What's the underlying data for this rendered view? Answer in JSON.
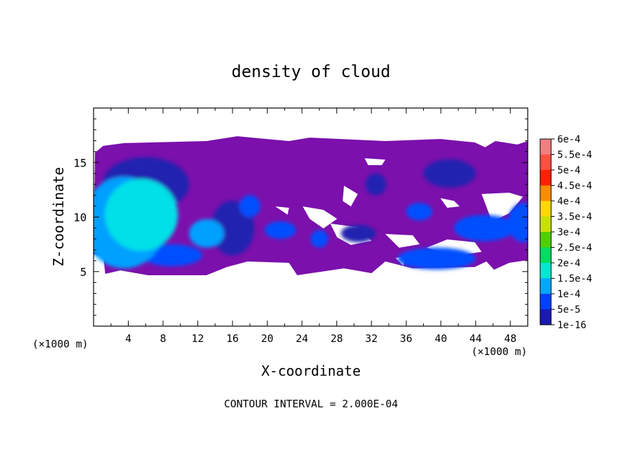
{
  "chart_data": {
    "type": "heatmap",
    "title": "density of cloud",
    "xlabel": "X-coordinate",
    "ylabel": "Z-coordinate",
    "x_unit_left": "(×1000 m)",
    "x_unit_right": "(×1000 m)",
    "xlim": [
      0,
      50
    ],
    "ylim": [
      0,
      20
    ],
    "x_ticks": [
      "4",
      "8",
      "12",
      "16",
      "20",
      "24",
      "28",
      "32",
      "36",
      "40",
      "44",
      "48"
    ],
    "y_ticks": [
      "5",
      "10",
      "15"
    ],
    "footer": "CONTOUR INTERVAL = 2.000E-04",
    "legend": {
      "placement": "right",
      "labels": [
        "6e-4",
        "5.5e-4",
        "5e-4",
        "4.5e-4",
        "4e-4",
        "3.5e-4",
        "3e-4",
        "2.5e-4",
        "2e-4",
        "1.5e-4",
        "1e-4",
        "5e-5",
        "1e-16"
      ],
      "colors": [
        "#f08080",
        "#ff5040",
        "#ff2000",
        "#ff8c00",
        "#ffd700",
        "#c8e000",
        "#50d000",
        "#00dd60",
        "#00e8d0",
        "#00a8ff",
        "#0040ff",
        "#1a1ab0",
        "#6a10b0"
      ]
    },
    "cloud_field": {
      "background_level": "1e-16",
      "background_color": "#7b10ac",
      "regions": [
        {
          "x": 5.5,
          "z": 10.2,
          "rx": 4.2,
          "rz": 3.3,
          "level": "2e-4",
          "color": "#00e0e8"
        },
        {
          "x": 3.5,
          "z": 9.5,
          "rx": 4.8,
          "rz": 4.2,
          "level": "1.5e-4",
          "color": "#00a0ff"
        },
        {
          "x": 13.0,
          "z": 8.5,
          "rx": 2.0,
          "rz": 1.3,
          "level": "1.5e-4",
          "color": "#00a0ff"
        },
        {
          "x": 9.0,
          "z": 6.5,
          "rx": 3.5,
          "rz": 1.0,
          "level": "1e-4",
          "color": "#0050ff"
        },
        {
          "x": 18.0,
          "z": 11.0,
          "rx": 1.2,
          "rz": 1.0,
          "level": "1e-4",
          "color": "#0050ff"
        },
        {
          "x": 21.5,
          "z": 8.8,
          "rx": 1.8,
          "rz": 0.8,
          "level": "1e-4",
          "color": "#0050ff"
        },
        {
          "x": 39.5,
          "z": 6.2,
          "rx": 4.5,
          "rz": 1.0,
          "level": "1e-4",
          "color": "#0050ff"
        },
        {
          "x": 45.0,
          "z": 9.0,
          "rx": 3.5,
          "rz": 1.2,
          "level": "1e-4",
          "color": "#0050ff"
        },
        {
          "x": 49.5,
          "z": 9.5,
          "rx": 1.8,
          "rz": 1.8,
          "level": "1e-4",
          "color": "#0050ff"
        },
        {
          "x": 37.5,
          "z": 10.5,
          "rx": 1.5,
          "rz": 0.8,
          "level": "1e-4",
          "color": "#0050ff"
        },
        {
          "x": 26.0,
          "z": 8.0,
          "rx": 1.0,
          "rz": 0.8,
          "level": "1e-4",
          "color": "#0050ff"
        },
        {
          "x": 6.0,
          "z": 13.0,
          "rx": 5.0,
          "rz": 2.5,
          "level": "5e-5",
          "color": "#2020b0"
        },
        {
          "x": 16.0,
          "z": 9.0,
          "rx": 2.5,
          "rz": 2.5,
          "level": "5e-5",
          "color": "#2020b0"
        },
        {
          "x": 41.0,
          "z": 14.0,
          "rx": 3.0,
          "rz": 1.3,
          "level": "5e-5",
          "color": "#2020b0"
        },
        {
          "x": 32.5,
          "z": 13.0,
          "rx": 1.2,
          "rz": 1.0,
          "level": "5e-5",
          "color": "#2020b0"
        },
        {
          "x": 30.5,
          "z": 8.5,
          "rx": 2.0,
          "rz": 0.8,
          "level": "5e-5",
          "color": "#2020b0"
        }
      ]
    }
  }
}
